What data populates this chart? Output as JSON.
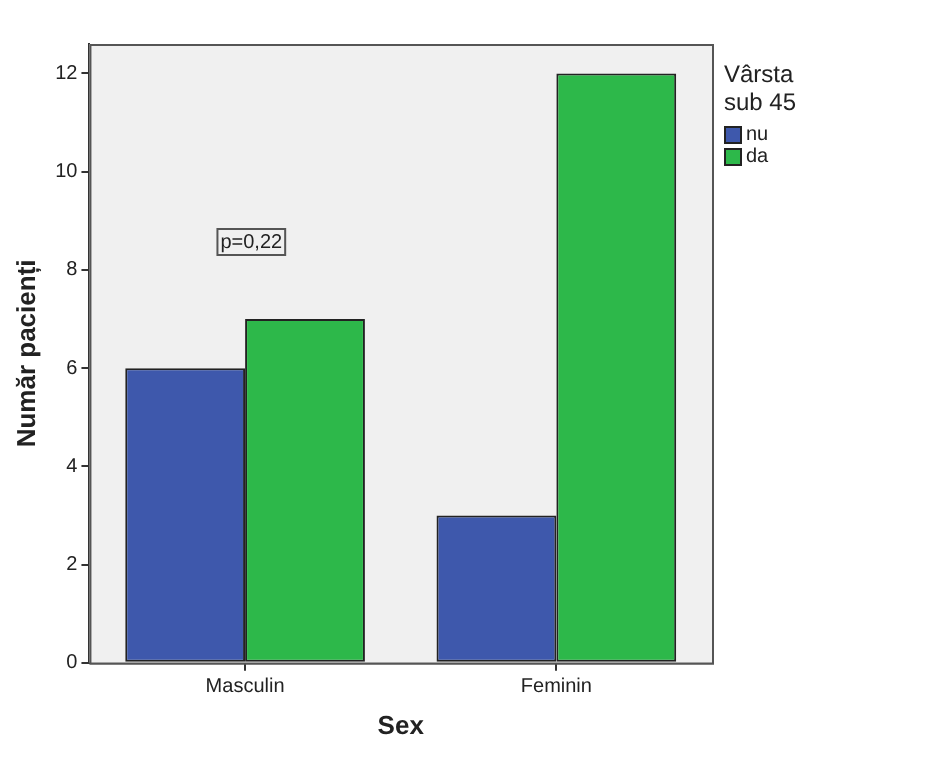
{
  "chart_data": {
    "type": "bar",
    "xlabel": "Sex",
    "ylabel": "Număr pacienți",
    "legend_title": "Vârsta sub 45",
    "categories": [
      "Masculin",
      "Feminin"
    ],
    "series": [
      {
        "name": "nu",
        "color": "#3e58ac",
        "values": [
          6,
          3
        ]
      },
      {
        "name": "da",
        "color": "#2db84a",
        "values": [
          7,
          12
        ]
      }
    ],
    "ylim": [
      0,
      12.6
    ],
    "yticks": [
      0,
      2,
      4,
      6,
      8,
      10,
      12
    ],
    "legend": "right",
    "annotations": [
      "p=0,22"
    ]
  }
}
